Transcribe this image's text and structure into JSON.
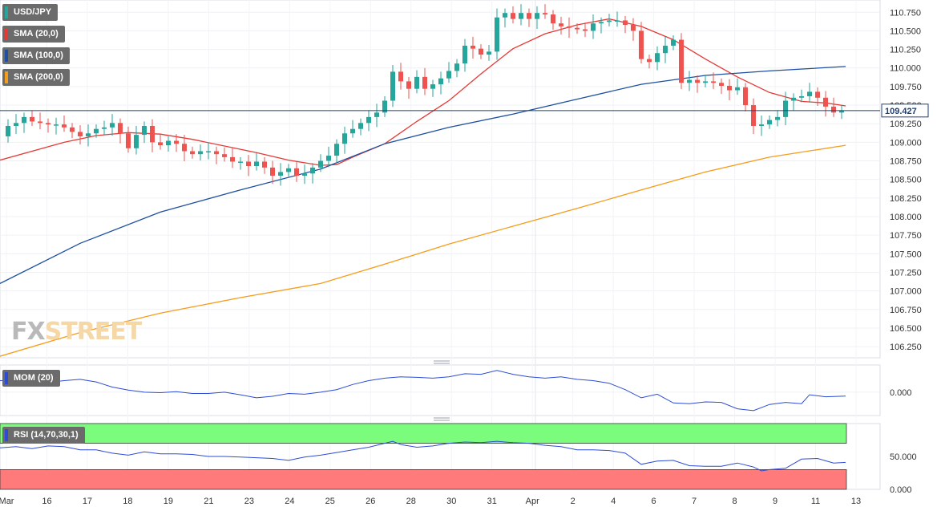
{
  "symbol": "USD/JPY",
  "indicators": {
    "sma20": "SMA (20,0)",
    "sma100": "SMA (100,0)",
    "sma200": "SMA (200,0)",
    "mom": "MOM (20)",
    "rsi": "RSI (14,70,30,1)"
  },
  "watermark": {
    "fx": "FX",
    "street": "STREET"
  },
  "colors": {
    "up": "#26a69a",
    "down": "#ef5350",
    "sma20": "#e53935",
    "sma100": "#1e4fa0",
    "sma200": "#f59c1a",
    "mom": "#2d4cd6",
    "rsi": "#2d4cd6",
    "rsi_overbought": "#7cfc7c",
    "rsi_oversold": "#ff7b7b",
    "price_line": "#1c3f75"
  },
  "chart_data": [
    {
      "type": "candlestick",
      "title": "USD/JPY",
      "x_ticks": [
        "Mar",
        "16",
        "17",
        "18",
        "19",
        "21",
        "23",
        "24",
        "25",
        "26",
        "28",
        "30",
        "31",
        "Apr",
        "2",
        "4",
        "6",
        "7",
        "8",
        "9",
        "11",
        "13"
      ],
      "y_ticks": [
        "106.250",
        "106.500",
        "106.750",
        "107.000",
        "107.250",
        "107.500",
        "107.750",
        "108.000",
        "108.250",
        "108.500",
        "108.750",
        "109.000",
        "109.250",
        "109.500",
        "109.750",
        "110.000",
        "110.250",
        "110.500",
        "110.750"
      ],
      "ylim": [
        106.1,
        110.85
      ],
      "current_price": "109.427",
      "close_path": [
        [
          0,
          109.08
        ],
        [
          10,
          109.22
        ],
        [
          20,
          109.26
        ],
        [
          30,
          109.34
        ],
        [
          40,
          109.28
        ],
        [
          50,
          109.26
        ],
        [
          60,
          109.24
        ],
        [
          70,
          109.24
        ],
        [
          80,
          109.2
        ],
        [
          90,
          109.14
        ],
        [
          100,
          109.08
        ],
        [
          110,
          109.12
        ],
        [
          120,
          109.18
        ],
        [
          130,
          109.2
        ],
        [
          140,
          109.26
        ],
        [
          150,
          109.12
        ],
        [
          160,
          108.92
        ],
        [
          170,
          109.1
        ],
        [
          180,
          109.22
        ],
        [
          190,
          109.0
        ],
        [
          200,
          108.96
        ],
        [
          210,
          109.02
        ],
        [
          220,
          108.98
        ],
        [
          230,
          108.88
        ],
        [
          240,
          108.84
        ],
        [
          250,
          108.88
        ],
        [
          260,
          108.88
        ],
        [
          270,
          108.84
        ],
        [
          280,
          108.8
        ],
        [
          290,
          108.74
        ],
        [
          300,
          108.74
        ],
        [
          310,
          108.68
        ],
        [
          320,
          108.74
        ],
        [
          330,
          108.66
        ],
        [
          340,
          108.55
        ],
        [
          350,
          108.6
        ],
        [
          360,
          108.65
        ],
        [
          370,
          108.55
        ],
        [
          380,
          108.58
        ],
        [
          390,
          108.66
        ],
        [
          400,
          108.75
        ],
        [
          410,
          108.82
        ],
        [
          420,
          108.98
        ],
        [
          430,
          109.12
        ],
        [
          440,
          109.18
        ],
        [
          450,
          109.26
        ],
        [
          460,
          109.34
        ],
        [
          470,
          109.4
        ],
        [
          480,
          109.56
        ],
        [
          490,
          109.95
        ],
        [
          500,
          109.82
        ],
        [
          510,
          109.72
        ],
        [
          520,
          109.88
        ],
        [
          530,
          109.72
        ],
        [
          540,
          109.78
        ],
        [
          550,
          109.86
        ],
        [
          560,
          109.96
        ],
        [
          570,
          110.06
        ],
        [
          580,
          110.3
        ],
        [
          590,
          110.26
        ],
        [
          600,
          110.18
        ],
        [
          610,
          110.22
        ],
        [
          620,
          110.68
        ],
        [
          630,
          110.74
        ],
        [
          640,
          110.66
        ],
        [
          650,
          110.74
        ],
        [
          660,
          110.66
        ],
        [
          670,
          110.74
        ],
        [
          680,
          110.72
        ],
        [
          690,
          110.6
        ],
        [
          700,
          110.56
        ],
        [
          710,
          110.54
        ],
        [
          720,
          110.52
        ],
        [
          730,
          110.5
        ],
        [
          740,
          110.6
        ],
        [
          750,
          110.62
        ],
        [
          760,
          110.64
        ],
        [
          770,
          110.64
        ],
        [
          780,
          110.58
        ],
        [
          790,
          110.5
        ],
        [
          800,
          110.12
        ],
        [
          810,
          110.08
        ],
        [
          820,
          110.2
        ],
        [
          830,
          110.3
        ],
        [
          840,
          110.38
        ],
        [
          850,
          109.8
        ],
        [
          860,
          109.84
        ],
        [
          870,
          109.8
        ],
        [
          880,
          109.82
        ],
        [
          890,
          109.8
        ],
        [
          900,
          109.76
        ],
        [
          910,
          109.7
        ],
        [
          920,
          109.74
        ],
        [
          930,
          109.5
        ],
        [
          940,
          109.22
        ],
        [
          950,
          109.24
        ],
        [
          960,
          109.3
        ],
        [
          970,
          109.34
        ],
        [
          980,
          109.56
        ],
        [
          990,
          109.6
        ],
        [
          1000,
          109.62
        ],
        [
          1010,
          109.68
        ],
        [
          1020,
          109.6
        ],
        [
          1030,
          109.48
        ],
        [
          1040,
          109.4
        ],
        [
          1050,
          109.43
        ]
      ],
      "series": [
        {
          "name": "SMA (20,0)",
          "points": [
            [
              0,
              108.76
            ],
            [
              40,
              108.88
            ],
            [
              80,
              109.0
            ],
            [
              120,
              109.09
            ],
            [
              160,
              109.13
            ],
            [
              200,
              109.11
            ],
            [
              240,
              109.04
            ],
            [
              280,
              108.95
            ],
            [
              320,
              108.86
            ],
            [
              360,
              108.76
            ],
            [
              400,
              108.69
            ],
            [
              420,
              108.7
            ],
            [
              440,
              108.8
            ],
            [
              480,
              108.98
            ],
            [
              520,
              109.28
            ],
            [
              560,
              109.56
            ],
            [
              600,
              109.92
            ],
            [
              640,
              110.26
            ],
            [
              680,
              110.46
            ],
            [
              720,
              110.58
            ],
            [
              760,
              110.66
            ],
            [
              800,
              110.56
            ],
            [
              840,
              110.38
            ],
            [
              880,
              110.12
            ],
            [
              920,
              109.88
            ],
            [
              960,
              109.67
            ],
            [
              1000,
              109.55
            ],
            [
              1030,
              109.53
            ],
            [
              1055,
              109.49
            ]
          ]
        },
        {
          "name": "SMA (100,0)",
          "points": [
            [
              0,
              107.1
            ],
            [
              100,
              107.64
            ],
            [
              200,
              108.06
            ],
            [
              300,
              108.36
            ],
            [
              400,
              108.64
            ],
            [
              480,
              108.98
            ],
            [
              560,
              109.2
            ],
            [
              640,
              109.38
            ],
            [
              720,
              109.58
            ],
            [
              800,
              109.78
            ],
            [
              880,
              109.9
            ],
            [
              960,
              109.96
            ],
            [
              1055,
              110.02
            ]
          ]
        },
        {
          "name": "SMA (200,0)",
          "points": [
            [
              0,
              106.12
            ],
            [
              100,
              106.44
            ],
            [
              200,
              106.7
            ],
            [
              300,
              106.91
            ],
            [
              400,
              107.1
            ],
            [
              480,
              107.36
            ],
            [
              560,
              107.63
            ],
            [
              640,
              107.87
            ],
            [
              720,
              108.11
            ],
            [
              800,
              108.36
            ],
            [
              880,
              108.6
            ],
            [
              960,
              108.8
            ],
            [
              1055,
              108.96
            ]
          ]
        }
      ]
    },
    {
      "type": "line",
      "title": "MOM (20)",
      "y_ticks": [
        "0.000"
      ],
      "points": [
        [
          0,
          0.45
        ],
        [
          20,
          0.45
        ],
        [
          40,
          0.4
        ],
        [
          60,
          0.38
        ],
        [
          80,
          0.45
        ],
        [
          100,
          0.5
        ],
        [
          120,
          0.4
        ],
        [
          140,
          0.2
        ],
        [
          160,
          0.08
        ],
        [
          180,
          0.0
        ],
        [
          200,
          -0.02
        ],
        [
          220,
          0.02
        ],
        [
          240,
          -0.05
        ],
        [
          260,
          -0.05
        ],
        [
          280,
          0.0
        ],
        [
          300,
          -0.1
        ],
        [
          320,
          -0.22
        ],
        [
          340,
          -0.16
        ],
        [
          360,
          -0.05
        ],
        [
          380,
          -0.08
        ],
        [
          400,
          0.0
        ],
        [
          420,
          0.1
        ],
        [
          440,
          0.3
        ],
        [
          460,
          0.45
        ],
        [
          480,
          0.55
        ],
        [
          500,
          0.6
        ],
        [
          520,
          0.58
        ],
        [
          540,
          0.55
        ],
        [
          560,
          0.6
        ],
        [
          580,
          0.72
        ],
        [
          600,
          0.7
        ],
        [
          620,
          0.85
        ],
        [
          640,
          0.7
        ],
        [
          660,
          0.6
        ],
        [
          680,
          0.55
        ],
        [
          700,
          0.6
        ],
        [
          720,
          0.5
        ],
        [
          740,
          0.45
        ],
        [
          760,
          0.35
        ],
        [
          780,
          0.1
        ],
        [
          800,
          -0.22
        ],
        [
          820,
          -0.08
        ],
        [
          840,
          -0.42
        ],
        [
          860,
          -0.45
        ],
        [
          880,
          -0.38
        ],
        [
          900,
          -0.4
        ],
        [
          920,
          -0.65
        ],
        [
          940,
          -0.72
        ],
        [
          960,
          -0.48
        ],
        [
          980,
          -0.4
        ],
        [
          1000,
          -0.45
        ],
        [
          1010,
          -0.1
        ],
        [
          1030,
          -0.18
        ],
        [
          1055,
          -0.15
        ]
      ]
    },
    {
      "type": "line",
      "title": "RSI (14,70,30,1)",
      "y_ticks": [
        "50.000",
        "0.000"
      ],
      "ylim": [
        0,
        100
      ],
      "points": [
        [
          0,
          63
        ],
        [
          20,
          65
        ],
        [
          40,
          62
        ],
        [
          60,
          66
        ],
        [
          80,
          65
        ],
        [
          100,
          60
        ],
        [
          120,
          60
        ],
        [
          140,
          55
        ],
        [
          160,
          52
        ],
        [
          180,
          57
        ],
        [
          200,
          54
        ],
        [
          220,
          54
        ],
        [
          240,
          53
        ],
        [
          260,
          50
        ],
        [
          280,
          50
        ],
        [
          300,
          49
        ],
        [
          320,
          48
        ],
        [
          340,
          47
        ],
        [
          360,
          44
        ],
        [
          380,
          49
        ],
        [
          400,
          52
        ],
        [
          420,
          56
        ],
        [
          440,
          60
        ],
        [
          460,
          64
        ],
        [
          480,
          70
        ],
        [
          490,
          73
        ],
        [
          500,
          68
        ],
        [
          520,
          64
        ],
        [
          540,
          66
        ],
        [
          560,
          70
        ],
        [
          580,
          72
        ],
        [
          600,
          71
        ],
        [
          620,
          73
        ],
        [
          640,
          71
        ],
        [
          660,
          70
        ],
        [
          680,
          67
        ],
        [
          700,
          65
        ],
        [
          720,
          60
        ],
        [
          740,
          60
        ],
        [
          760,
          59
        ],
        [
          780,
          55
        ],
        [
          800,
          38
        ],
        [
          820,
          43
        ],
        [
          840,
          44
        ],
        [
          860,
          36
        ],
        [
          880,
          35
        ],
        [
          900,
          35
        ],
        [
          920,
          40
        ],
        [
          940,
          34
        ],
        [
          950,
          28
        ],
        [
          960,
          30
        ],
        [
          980,
          32
        ],
        [
          1000,
          46
        ],
        [
          1020,
          47
        ],
        [
          1040,
          40
        ],
        [
          1055,
          41
        ]
      ]
    }
  ]
}
